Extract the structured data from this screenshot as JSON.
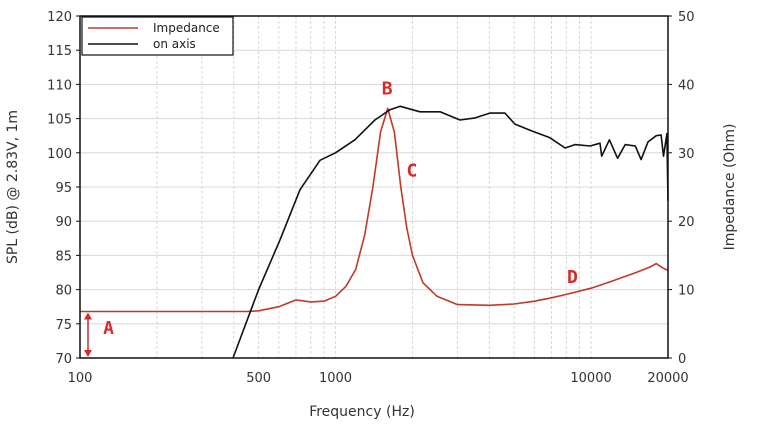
{
  "chart_data": {
    "type": "line",
    "xlabel": "Frequency (Hz)",
    "ylabel": "SPL (dB) @ 2.83V, 1m",
    "y2label": "Impedance (Ohm)",
    "xscale": "log",
    "xlim": [
      100,
      20000
    ],
    "ylim": [
      70,
      120
    ],
    "y2lim": [
      0,
      50
    ],
    "grid": true,
    "legend_position": "top-left",
    "xticks": [
      100,
      500,
      1000,
      10000,
      20000
    ],
    "xtick_labels": [
      "100",
      "500",
      "1000",
      "10000",
      "20000"
    ],
    "yticks": [
      "70",
      "75",
      "80",
      "85",
      "90",
      "95",
      "100",
      "105",
      "110",
      "115",
      "120"
    ],
    "y2ticks": [
      "0",
      "10",
      "20",
      "30",
      "40",
      "50"
    ],
    "series": [
      {
        "name": "Impedance",
        "axis": "right",
        "color": "#c0392b",
        "x": [
          100,
          200,
          300,
          450,
          500,
          600,
          700,
          800,
          900,
          1000,
          1100,
          1200,
          1300,
          1400,
          1500,
          1600,
          1700,
          1800,
          1900,
          2000,
          2200,
          2500,
          3000,
          4000,
          5000,
          6000,
          7000,
          8000,
          10000,
          12000,
          15000,
          17000,
          18000,
          19000,
          20000
        ],
        "y": [
          6.8,
          6.8,
          6.8,
          6.8,
          6.9,
          7.5,
          8.5,
          8.2,
          8.3,
          9,
          10.5,
          13,
          18,
          25,
          33,
          36.5,
          33,
          25,
          19,
          15,
          11,
          9,
          7.8,
          7.7,
          7.9,
          8.3,
          8.8,
          9.3,
          10.2,
          11.2,
          12.5,
          13.3,
          13.8,
          13.2,
          12.8
        ]
      },
      {
        "name": "on axis",
        "axis": "left",
        "color": "#111111",
        "x": [
          397,
          500,
          607,
          726,
          869,
          1000,
          1191,
          1426,
          1633,
          1790,
          2140,
          2563,
          3069,
          3516,
          4018,
          4603,
          5036,
          5770,
          6905,
          7910,
          8650,
          9910,
          10840,
          11000,
          11800,
          12700,
          13600,
          14900,
          15700,
          16700,
          18000,
          18800,
          19200,
          19800,
          20000
        ],
        "y": [
          70,
          80,
          87.3,
          94.6,
          98.9,
          100,
          101.9,
          104.8,
          106.3,
          106.8,
          106,
          106,
          104.8,
          105.1,
          105.8,
          105.8,
          104.2,
          103.3,
          102.2,
          100.7,
          101.2,
          101,
          101.4,
          99.5,
          101.9,
          99.2,
          101.2,
          101,
          99,
          101.6,
          102.5,
          102.6,
          99.5,
          102.8,
          93
        ]
      }
    ],
    "annotations": [
      {
        "label": "A",
        "x": 130,
        "y_ohm": 3.5
      },
      {
        "label": "B",
        "x": 1600,
        "y_db": 108.5
      },
      {
        "label": "C",
        "x": 2000,
        "y_db": 96.5
      },
      {
        "label": "D",
        "x": 8500,
        "y_ohm": 11
      }
    ]
  }
}
